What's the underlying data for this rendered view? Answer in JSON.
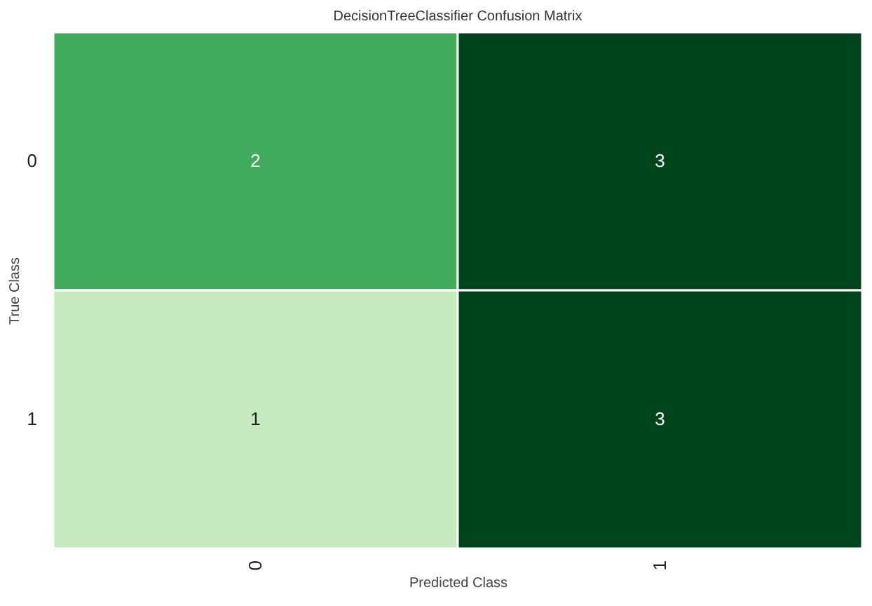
{
  "chart_data": {
    "type": "heatmap",
    "title": "DecisionTreeClassifier Confusion Matrix",
    "xlabel": "Predicted Class",
    "ylabel": "True Class",
    "categories": [
      "0",
      "1"
    ],
    "y_categories": [
      "0",
      "1"
    ],
    "cells": [
      [
        2,
        3
      ],
      [
        1,
        3
      ]
    ],
    "data_labels": true
  }
}
